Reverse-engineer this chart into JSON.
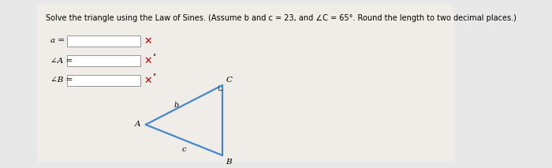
{
  "title": "Solve the triangle using the Law of Sines. (Assume b and c = 23, and ∠C = 65°. Round the length to two decimal places.)",
  "fields": [
    {
      "label": "a =",
      "has_degree": false
    },
    {
      "label": "∠A =",
      "has_degree": true
    },
    {
      "label": "∠B =",
      "has_degree": true
    }
  ],
  "x_color": "#cc0000",
  "background_color": "#e8e8e8",
  "panel_color": "#ffffff",
  "triangle": {
    "A": [
      0.295,
      0.46
    ],
    "B": [
      0.465,
      0.12
    ],
    "C": [
      0.465,
      0.88
    ],
    "label_A": "A",
    "label_B": "B",
    "label_C": "C",
    "label_b": "b",
    "label_c": "c",
    "line_color": "#4488cc",
    "line_width": 1.6
  }
}
